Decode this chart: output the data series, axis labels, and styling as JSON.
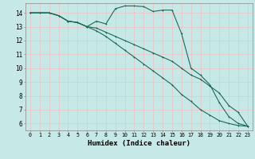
{
  "background_color": "#c6e8e6",
  "grid_color": "#e8c8c8",
  "line_color": "#1a6b5a",
  "xlabel": "Humidex (Indice chaleur)",
  "xlim": [
    -0.5,
    23.5
  ],
  "ylim": [
    5.5,
    14.7
  ],
  "yticks": [
    6,
    7,
    8,
    9,
    10,
    11,
    12,
    13,
    14
  ],
  "xticks": [
    0,
    1,
    2,
    3,
    4,
    5,
    6,
    7,
    8,
    9,
    10,
    11,
    12,
    13,
    14,
    15,
    16,
    17,
    18,
    19,
    20,
    21,
    22,
    23
  ],
  "line1_x": [
    0,
    1,
    2,
    3,
    4,
    5,
    6,
    7,
    8,
    9,
    10,
    11,
    12,
    13,
    14,
    15,
    16,
    17,
    18,
    19,
    20,
    21,
    22,
    23
  ],
  "line1_y": [
    14.0,
    14.0,
    14.0,
    13.8,
    13.4,
    13.3,
    13.0,
    13.4,
    13.2,
    14.3,
    14.5,
    14.5,
    14.45,
    14.1,
    14.2,
    14.2,
    12.5,
    10.0,
    9.5,
    8.8,
    7.5,
    6.5,
    6.0,
    5.8
  ],
  "line2_x": [
    0,
    1,
    2,
    3,
    4,
    5,
    6,
    7,
    8,
    9,
    10,
    11,
    12,
    13,
    14,
    15,
    16,
    17,
    18,
    19,
    20,
    21,
    22,
    23
  ],
  "line2_y": [
    14.0,
    14.0,
    14.0,
    13.8,
    13.4,
    13.3,
    13.0,
    12.9,
    12.6,
    12.3,
    12.0,
    11.7,
    11.4,
    11.1,
    10.8,
    10.5,
    10.0,
    9.5,
    9.2,
    8.7,
    8.2,
    7.3,
    6.8,
    5.8
  ],
  "line3_x": [
    0,
    1,
    2,
    3,
    4,
    5,
    6,
    7,
    8,
    9,
    10,
    11,
    12,
    13,
    14,
    15,
    16,
    17,
    18,
    19,
    20,
    21,
    22,
    23
  ],
  "line3_y": [
    14.0,
    14.0,
    14.0,
    13.8,
    13.4,
    13.3,
    13.0,
    12.7,
    12.3,
    11.8,
    11.3,
    10.8,
    10.3,
    9.8,
    9.3,
    8.8,
    8.1,
    7.6,
    7.0,
    6.6,
    6.2,
    6.0,
    5.85,
    5.8
  ]
}
